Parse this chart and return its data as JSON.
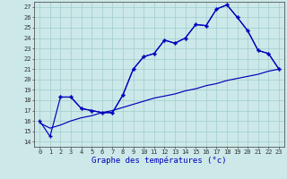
{
  "title": "Graphe des températures (°c)",
  "bg_color": "#cce8e8",
  "line_color": "#0000bb",
  "ylim": [
    13.5,
    27.5
  ],
  "xlim": [
    -0.5,
    23.5
  ],
  "ytick_vals": [
    14,
    15,
    16,
    17,
    18,
    19,
    20,
    21,
    22,
    23,
    24,
    25,
    26,
    27
  ],
  "xtick_vals": [
    0,
    1,
    2,
    3,
    4,
    5,
    6,
    7,
    8,
    9,
    10,
    11,
    12,
    13,
    14,
    15,
    16,
    17,
    18,
    19,
    20,
    21,
    22,
    23
  ],
  "series": [
    {
      "x": [
        0,
        1,
        2,
        3,
        4,
        5,
        6,
        7,
        8,
        9,
        10,
        11,
        12,
        13,
        14,
        15,
        16,
        17,
        18,
        19,
        20,
        21,
        22,
        23
      ],
      "y": [
        16.0,
        14.5,
        18.3,
        18.3,
        17.2,
        17.0,
        16.8,
        16.8,
        18.5,
        21.0,
        22.2,
        22.5,
        23.8,
        23.5,
        24.0,
        25.3,
        25.2,
        26.8,
        27.2,
        26.0,
        24.7,
        22.8,
        22.5,
        21.0
      ],
      "marker": true
    },
    {
      "x": [
        2,
        3,
        4,
        5,
        6,
        7,
        8,
        9,
        10,
        11,
        12,
        13,
        14,
        15,
        16,
        17,
        18,
        19,
        20,
        21,
        22,
        23
      ],
      "y": [
        18.3,
        18.3,
        17.2,
        17.0,
        16.8,
        16.8,
        18.5,
        21.0,
        22.2,
        22.5,
        23.8,
        23.5,
        24.0,
        25.3,
        25.2,
        26.8,
        27.2,
        26.0,
        24.7,
        22.8,
        22.5,
        21.0
      ],
      "marker": true
    },
    {
      "x": [
        0,
        1,
        2,
        3,
        4,
        5,
        6,
        7,
        8,
        9,
        10,
        11,
        12,
        13,
        14,
        15,
        16,
        17,
        18,
        19,
        20,
        21,
        22,
        23
      ],
      "y": [
        15.8,
        15.3,
        15.6,
        16.0,
        16.3,
        16.5,
        16.8,
        17.0,
        17.3,
        17.6,
        17.9,
        18.2,
        18.4,
        18.6,
        18.9,
        19.1,
        19.4,
        19.6,
        19.9,
        20.1,
        20.3,
        20.5,
        20.8,
        21.0
      ],
      "marker": false
    }
  ]
}
